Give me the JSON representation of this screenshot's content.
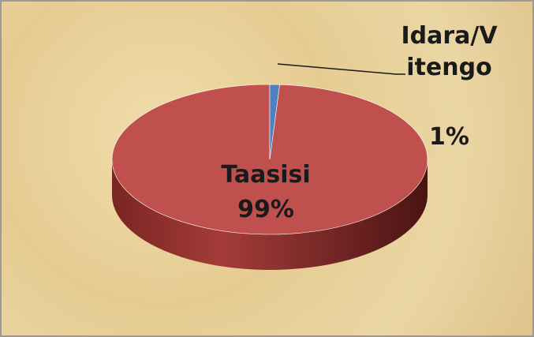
{
  "chart_data": {
    "type": "pie",
    "categories": [
      "Taasisi",
      "Idara/Vitengo"
    ],
    "values": [
      99,
      1
    ],
    "value_labels": [
      "99%",
      "1%"
    ],
    "colors": [
      "#c0504d",
      "#4f81bd"
    ]
  }
}
